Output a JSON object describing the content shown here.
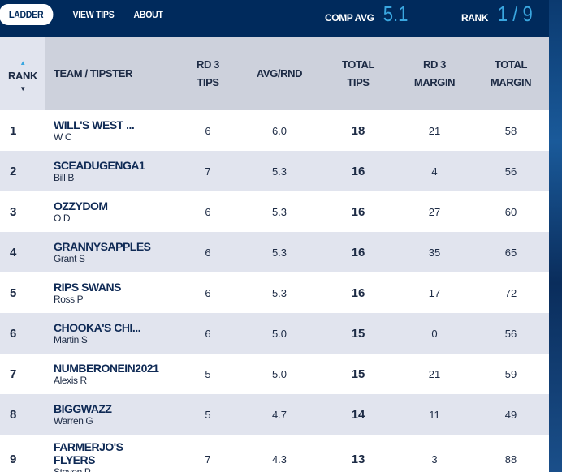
{
  "nav": {
    "tabs": [
      {
        "label": "LADDER",
        "active": true
      },
      {
        "label": "VIEW TIPS"
      },
      {
        "label": "ABOUT"
      }
    ]
  },
  "stats": {
    "comp_avg_label": "COMP AVG",
    "comp_avg": "5.1",
    "rank_label": "RANK",
    "rank": "1 / 9"
  },
  "colors": {
    "navy": "#002a5c",
    "accent": "#3aa7e0"
  },
  "columns": [
    "RANK",
    "TEAM / TIPSTER",
    "RD 3\nTIPS",
    "AVG/RND",
    "TOTAL\nTIPS",
    "RD 3\nMARGIN",
    "TOTAL\nMARGIN"
  ],
  "rows": [
    {
      "rank": "1",
      "team": "WILL'S WEST ...",
      "tipster": "W C",
      "rd3_tips": "6",
      "avg": "6.0",
      "total_tips": "18",
      "rd3_margin": "21",
      "total_margin": "58"
    },
    {
      "rank": "2",
      "team": "SCEADUGENGA1",
      "tipster": "Bill B",
      "rd3_tips": "7",
      "avg": "5.3",
      "total_tips": "16",
      "rd3_margin": "4",
      "total_margin": "56"
    },
    {
      "rank": "3",
      "team": "OZZYDOM",
      "tipster": "O D",
      "rd3_tips": "6",
      "avg": "5.3",
      "total_tips": "16",
      "rd3_margin": "27",
      "total_margin": "60"
    },
    {
      "rank": "4",
      "team": "GRANNYSAPPLES",
      "tipster": "Grant S",
      "rd3_tips": "6",
      "avg": "5.3",
      "total_tips": "16",
      "rd3_margin": "35",
      "total_margin": "65"
    },
    {
      "rank": "5",
      "team": "RIPS SWANS",
      "tipster": "Ross P",
      "rd3_tips": "6",
      "avg": "5.3",
      "total_tips": "16",
      "rd3_margin": "17",
      "total_margin": "72"
    },
    {
      "rank": "6",
      "team": "CHOOKA'S CHI...",
      "tipster": "Martin S",
      "rd3_tips": "6",
      "avg": "5.0",
      "total_tips": "15",
      "rd3_margin": "0",
      "total_margin": "56"
    },
    {
      "rank": "7",
      "team": "NUMBERONEIN2021",
      "tipster": "Alexis R",
      "rd3_tips": "5",
      "avg": "5.0",
      "total_tips": "15",
      "rd3_margin": "21",
      "total_margin": "59"
    },
    {
      "rank": "8",
      "team": "BIGGWAZZ",
      "tipster": "Warren G",
      "rd3_tips": "5",
      "avg": "4.7",
      "total_tips": "14",
      "rd3_margin": "11",
      "total_margin": "49"
    },
    {
      "rank": "9",
      "team": "FARMERJO'S\nFLYERS",
      "tipster": "Steven P",
      "rd3_tips": "7",
      "avg": "4.3",
      "total_tips": "13",
      "rd3_margin": "3",
      "total_margin": "88"
    }
  ]
}
